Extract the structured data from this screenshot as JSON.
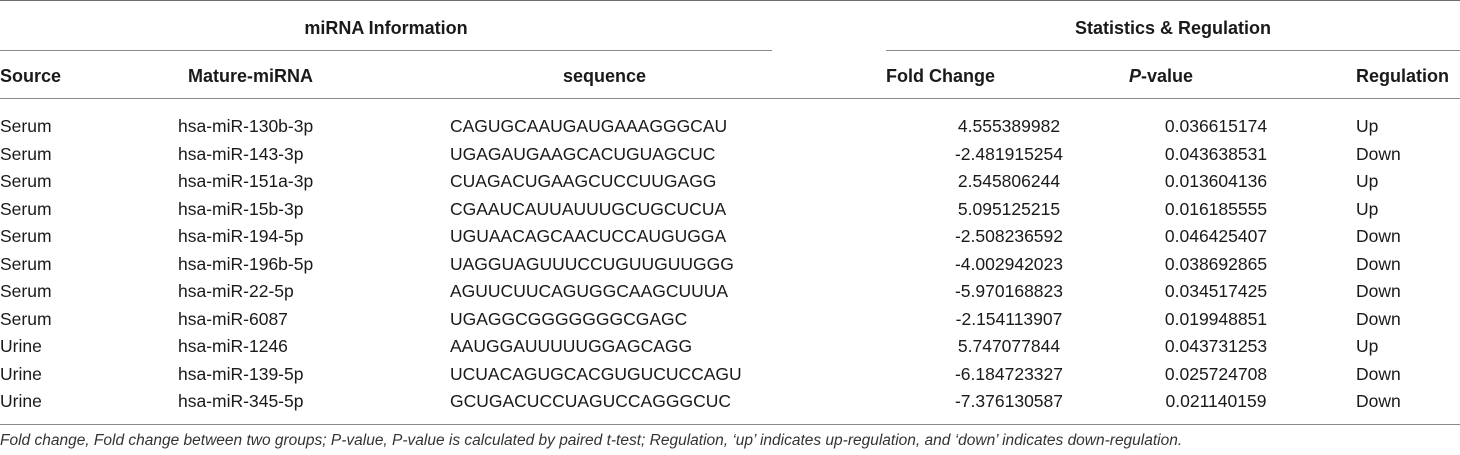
{
  "groups": {
    "left": "miRNA Information",
    "right": "Statistics & Regulation"
  },
  "columns": {
    "source": "Source",
    "mature": "Mature-miRNA",
    "sequence": "sequence",
    "fold_change": "Fold Change",
    "p_value_italic": "P",
    "p_value_rest": "-value",
    "regulation": "Regulation"
  },
  "rows": [
    {
      "source": "Serum",
      "mature": "hsa-miR-130b-3p",
      "sequence": "CAGUGCAAUGAUGAAAGGGCAU",
      "fold_change": "4.555389982",
      "p_value": "0.036615174",
      "regulation": "Up"
    },
    {
      "source": "Serum",
      "mature": "hsa-miR-143-3p",
      "sequence": "UGAGAUGAAGCACUGUAGCUC",
      "fold_change": "-2.481915254",
      "p_value": "0.043638531",
      "regulation": "Down"
    },
    {
      "source": "Serum",
      "mature": "hsa-miR-151a-3p",
      "sequence": "CUAGACUGAAGCUCCUUGAGG",
      "fold_change": "2.545806244",
      "p_value": "0.013604136",
      "regulation": "Up"
    },
    {
      "source": "Serum",
      "mature": "hsa-miR-15b-3p",
      "sequence": "CGAAUCAUUAUUUGCUGCUCUA",
      "fold_change": "5.095125215",
      "p_value": "0.016185555",
      "regulation": "Up"
    },
    {
      "source": "Serum",
      "mature": "hsa-miR-194-5p",
      "sequence": "UGUAACAGCAACUCCAUGUGGA",
      "fold_change": "-2.508236592",
      "p_value": "0.046425407",
      "regulation": "Down"
    },
    {
      "source": "Serum",
      "mature": "hsa-miR-196b-5p",
      "sequence": "UAGGUAGUUUCCUGUUGUUGGG",
      "fold_change": "-4.002942023",
      "p_value": "0.038692865",
      "regulation": "Down"
    },
    {
      "source": "Serum",
      "mature": "hsa-miR-22-5p",
      "sequence": "AGUUCUUCAGUGGCAAGCUUUA",
      "fold_change": "-5.970168823",
      "p_value": "0.034517425",
      "regulation": "Down"
    },
    {
      "source": "Serum",
      "mature": "hsa-miR-6087",
      "sequence": "UGAGGCGGGGGGGCGAGC",
      "fold_change": "-2.154113907",
      "p_value": "0.019948851",
      "regulation": "Down"
    },
    {
      "source": "Urine",
      "mature": "hsa-miR-1246",
      "sequence": "AAUGGAUUUUUGGAGCAGG",
      "fold_change": "5.747077844",
      "p_value": "0.043731253",
      "regulation": "Up"
    },
    {
      "source": "Urine",
      "mature": "hsa-miR-139-5p",
      "sequence": "UCUACAGUGCACGUGUCUCCAGU",
      "fold_change": "-6.184723327",
      "p_value": "0.025724708",
      "regulation": "Down"
    },
    {
      "source": "Urine",
      "mature": "hsa-miR-345-5p",
      "sequence": "GCUGACUCCUAGUCCAGGGCUC",
      "fold_change": "-7.376130587",
      "p_value": "0.021140159",
      "regulation": "Down"
    }
  ],
  "footnote": "Fold change, Fold change between two groups; P-value, P-value is calculated by paired t-test; Regulation, ‘up’ indicates up-regulation, and ‘down’ indicates down-regulation."
}
